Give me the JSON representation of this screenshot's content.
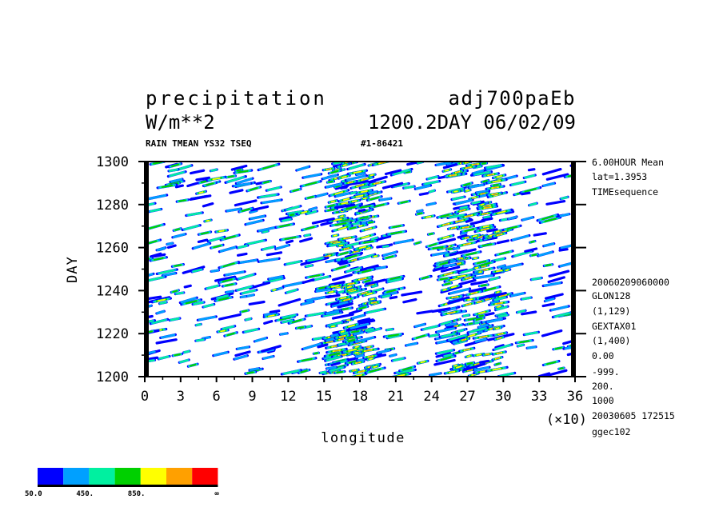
{
  "header": {
    "variable": "precipitation",
    "experiment": "adj700paEb",
    "units": "W/m**2",
    "time": "1200.2DAY 06/02/09",
    "subtitle": "RAIN TMEAN YS32 TSEQ",
    "record": "#1-86421"
  },
  "right_info": [
    "6.00HOUR Mean",
    "lat=1.3953",
    "TIMEsequence",
    "20060209060000",
    "GLON128",
    "(1,129)",
    "GEXTAX01",
    "(1,400)",
    "0.00",
    "-999.",
    "200.",
    "1000",
    "20030605 172515",
    "ggec102"
  ],
  "chart_data": {
    "type": "heatmap",
    "title": "precipitation",
    "xlabel": "longitude",
    "ylabel": "DAY",
    "xlim": [
      0,
      36
    ],
    "ylim": [
      1200,
      1300
    ],
    "x_scale_note": "(×10)",
    "x_ticks": [
      "0",
      "3",
      "6",
      "9",
      "12",
      "15",
      "18",
      "21",
      "24",
      "27",
      "30",
      "33",
      "36"
    ],
    "y_ticks": [
      "1200",
      "1220",
      "1240",
      "1260",
      "1280",
      "1300"
    ],
    "legend": {
      "colors": [
        "#0000ff",
        "#00a0ff",
        "#00f0a0",
        "#00d000",
        "#ffff00",
        "#ffa000",
        "#ff0000"
      ],
      "labels": [
        "50.0",
        "450.",
        "850.",
        "∞"
      ]
    },
    "field_density_notes": "dense convective streaks, clustered near longitude 17-19 and 26-29 (x10)"
  }
}
